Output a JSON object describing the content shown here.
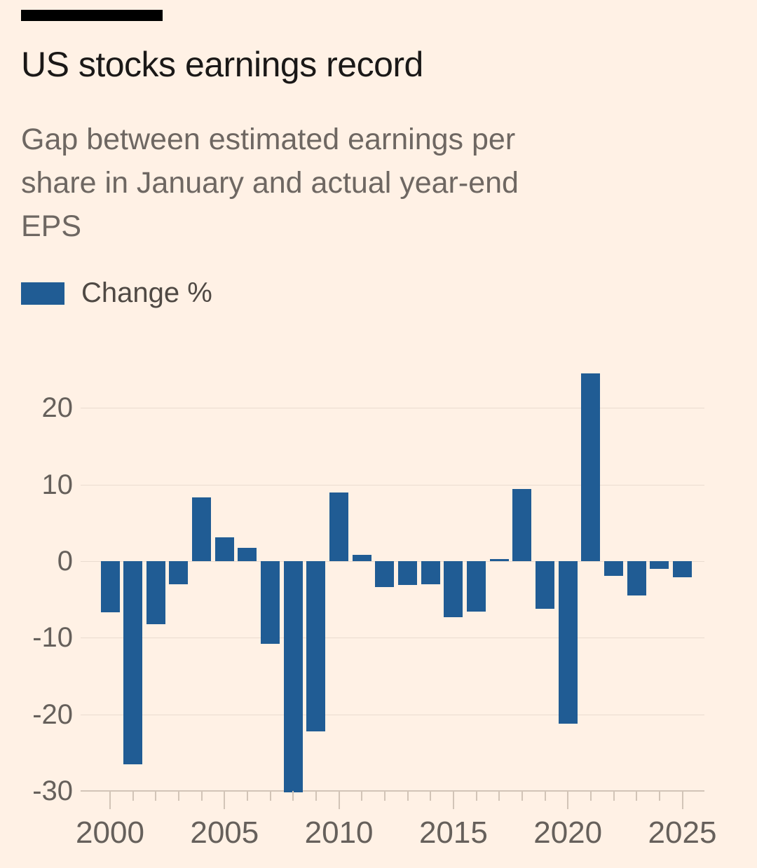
{
  "header": {
    "title": "US stocks earnings record",
    "subtitle_lines": [
      "Gap between estimated earnings per",
      "share in January and actual year-end",
      "EPS"
    ]
  },
  "legend": {
    "label": "Change %"
  },
  "colors": {
    "background": "#FFF1E5",
    "bar": "#205C94",
    "title_text": "#1A1817",
    "subtitle_text": "#6E6762",
    "axis_text": "#66605B",
    "legend_text": "#4F4944",
    "gridline": "#EADCD0",
    "axis_line": "#D2C4B7",
    "top_bar": "#000000"
  },
  "chart_data": {
    "type": "bar",
    "series_name": "Change %",
    "x": [
      2000,
      2001,
      2002,
      2003,
      2004,
      2005,
      2006,
      2007,
      2008,
      2009,
      2010,
      2011,
      2012,
      2013,
      2014,
      2015,
      2016,
      2017,
      2018,
      2019,
      2020,
      2021,
      2022,
      2023,
      2024,
      2025
    ],
    "values": [
      -6.7,
      -26.5,
      -8.2,
      -3.0,
      8.3,
      3.1,
      1.7,
      -10.8,
      -30.2,
      -22.2,
      9.0,
      0.8,
      -3.4,
      -3.1,
      -3.0,
      -7.3,
      -6.6,
      0.3,
      9.4,
      -6.2,
      -21.2,
      24.5,
      -1.9,
      -4.5,
      -1.0,
      -2.1
    ],
    "ylim": [
      -30,
      25
    ],
    "yticks": [
      20,
      10,
      0,
      -10,
      -20,
      -30
    ],
    "xtick_labeled_years": [
      2000,
      2005,
      2010,
      2015,
      2020,
      2025
    ],
    "grid": true,
    "legend_position": "top-left"
  }
}
